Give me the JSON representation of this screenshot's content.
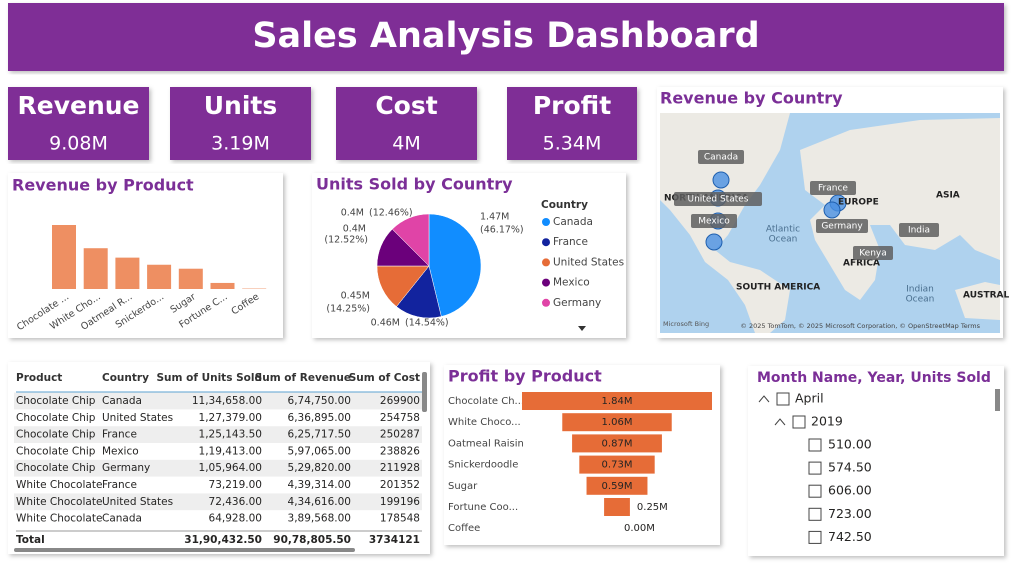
{
  "header": {
    "title": "Sales Analysis Dashboard"
  },
  "kpis": [
    {
      "label": "Revenue",
      "value": "9.08M"
    },
    {
      "label": "Units",
      "value": "3.19M"
    },
    {
      "label": "Cost",
      "value": "4M"
    },
    {
      "label": "Profit",
      "value": "5.34M"
    }
  ],
  "chart_data": [
    {
      "type": "bar",
      "title": "Revenue by Product",
      "categories": [
        "Chocolate ...",
        "White Cho...",
        "Oatmeal R...",
        "Snickerdo...",
        "Sugar",
        "Fortune C...",
        "Coffee"
      ],
      "values": [
        3060000,
        1950000,
        1500000,
        1160000,
        970000,
        290000,
        20000
      ],
      "color": "#EE8F62"
    },
    {
      "type": "pie",
      "title": "Units Sold by Country",
      "legend_title": "Country",
      "categories": [
        "Canada",
        "France",
        "United States",
        "Mexico",
        "Germany"
      ],
      "values": [
        1470000,
        460000,
        450000,
        400000,
        400000
      ],
      "value_labels": [
        "1.47M",
        "0.46M",
        "0.45M",
        "0.4M",
        "0.4M"
      ],
      "percents": [
        46.17,
        14.54,
        14.25,
        12.52,
        12.46
      ],
      "percent_labels": [
        "(46.17%)",
        "(14.54%)",
        "(14.25%)",
        "(12.52%)",
        "(12.46%)"
      ],
      "colors": [
        "#118DFF",
        "#12239E",
        "#E66C37",
        "#6B007B",
        "#E044A7"
      ]
    },
    {
      "type": "funnel",
      "title": "Profit by Product",
      "categories": [
        "Chocolate Ch...",
        "White Choco...",
        "Oatmeal Raisin",
        "Snickerdoodle",
        "Sugar",
        "Fortune Coo...",
        "Coffee"
      ],
      "values": [
        1840000,
        1060000,
        870000,
        730000,
        590000,
        250000,
        0
      ],
      "value_labels": [
        "1.84M",
        "1.06M",
        "0.87M",
        "0.73M",
        "0.59M",
        "0.25M",
        "0.00M"
      ],
      "color": "#E66C37"
    }
  ],
  "map": {
    "title": "Revenue by Country",
    "places": [
      "Canada",
      "United States",
      "Mexico",
      "France",
      "Germany",
      "India",
      "Kenya"
    ],
    "regions": [
      "NORTH AMERICA",
      "EUROPE",
      "ASIA",
      "Atlantic",
      "Ocean",
      "AFRICA",
      "SOUTH AMERICA",
      "Indian",
      "Ocean",
      "AUSTRAL"
    ],
    "logo": "Microsoft Bing",
    "attribution": "© 2025 TomTom, © 2025 Microsoft Corporation, © OpenStreetMap  Terms"
  },
  "table": {
    "columns": [
      "Product",
      "Country",
      "Sum of Units Sold",
      "Sum of Revenue",
      "Sum of Cost"
    ],
    "rows": [
      [
        "Chocolate Chip",
        "Canada",
        "11,34,658.00",
        "6,74,750.00",
        "269900"
      ],
      [
        "Chocolate Chip",
        "United States",
        "1,27,379.00",
        "6,36,895.00",
        "254758"
      ],
      [
        "Chocolate Chip",
        "France",
        "1,25,143.50",
        "6,25,717.50",
        "250287"
      ],
      [
        "Chocolate Chip",
        "Mexico",
        "1,19,413.00",
        "5,97,065.00",
        "238826"
      ],
      [
        "Chocolate Chip",
        "Germany",
        "1,05,964.00",
        "5,29,820.00",
        "211928"
      ],
      [
        "White Chocolate",
        "France",
        "73,219.00",
        "4,39,314.00",
        "201352"
      ],
      [
        "White Chocolate",
        "United States",
        "72,436.00",
        "4,34,616.00",
        "199196"
      ],
      [
        "White Chocolate",
        "Canada",
        "64,928.00",
        "3,89,568.00",
        "178548"
      ]
    ],
    "total": [
      "Total",
      "31,90,432.50",
      "90,78,805.50",
      "3734121"
    ]
  },
  "slicer": {
    "title": "Month Name, Year, Units Sold",
    "month": "April",
    "year": "2019",
    "items": [
      "510.00",
      "574.50",
      "606.00",
      "723.00",
      "742.50"
    ]
  }
}
